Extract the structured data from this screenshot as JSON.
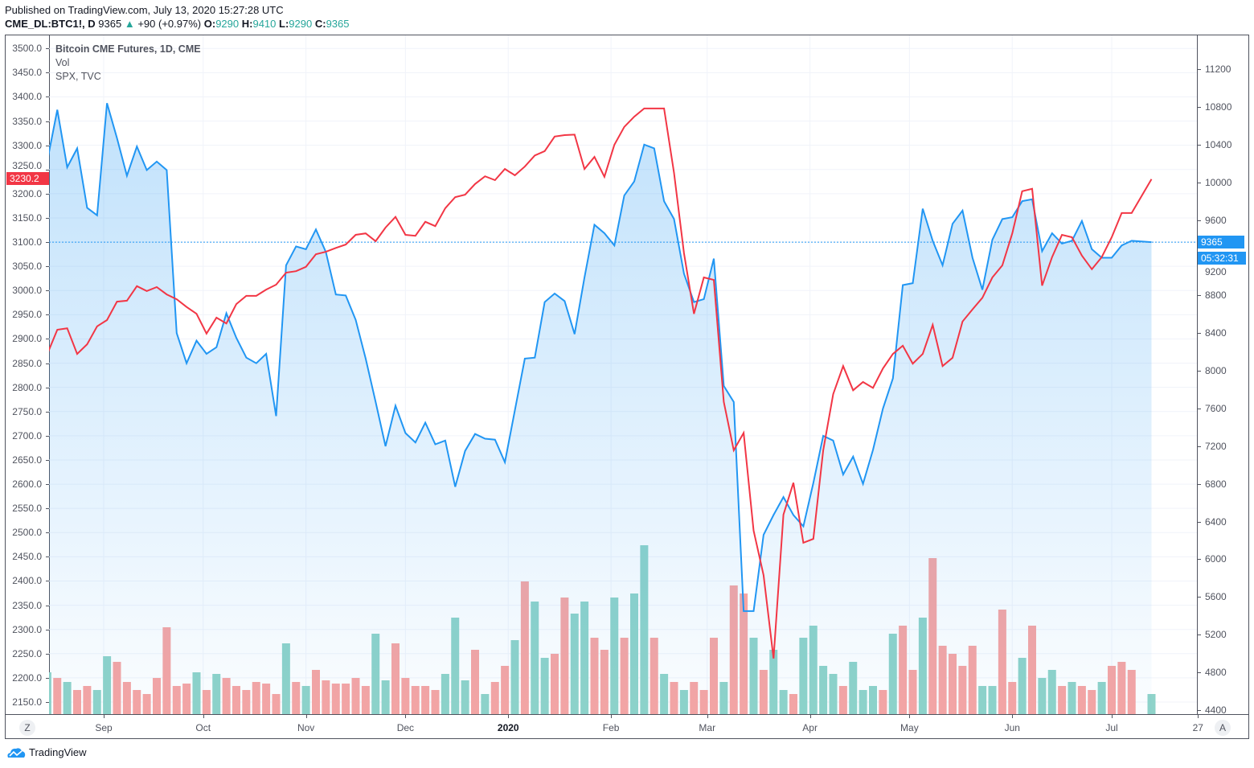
{
  "header": {
    "published": "Published on TradingView.com, July 13, 2020 15:27:28 UTC",
    "symbol": "CME_DL:BTC1!, D",
    "last": "9365",
    "change": "+90 (+0.97%)",
    "o_label": "O:",
    "o": "9290",
    "h_label": "H:",
    "h": "9410",
    "l_label": "L:",
    "l": "9290",
    "c_label": "C:",
    "c": "9365"
  },
  "legend": {
    "main": "Bitcoin CME Futures, 1D, CME",
    "vol": "Vol",
    "compare": "SPX, TVC"
  },
  "price_tags": {
    "spx_last": "3230.2",
    "btc_last": "9365",
    "countdown": "05:32:31"
  },
  "buttons": {
    "z": "Z",
    "a": "A"
  },
  "brand": "TradingView",
  "colors": {
    "btc": "#2196f3",
    "spx": "#f23645",
    "vol_up": "#8fd3c9",
    "vol_down": "#f7a5a3",
    "spx_tag": "#f23645",
    "btc_tag": "#2196f3"
  },
  "chart_data": {
    "type": "line",
    "left_axis": {
      "label": "SPX",
      "range": [
        2150,
        3500
      ],
      "ticks": [
        "3500.0",
        "3450.0",
        "3400.0",
        "3350.0",
        "3300.0",
        "3250.0",
        "3200.0",
        "3150.0",
        "3100.0",
        "3050.0",
        "3000.0",
        "2950.0",
        "2900.0",
        "2850.0",
        "2800.0",
        "2750.0",
        "2700.0",
        "2650.0",
        "2600.0",
        "2550.0",
        "2500.0",
        "2450.0",
        "2400.0",
        "2350.0",
        "2300.0",
        "2250.0",
        "2200.0",
        "2150.0"
      ]
    },
    "right_axis": {
      "label": "BTC1!",
      "range": [
        4400,
        11200
      ],
      "ticks": [
        "11200",
        "10800",
        "10400",
        "10000",
        "9600",
        "9200",
        "8800",
        "8400",
        "8000",
        "7600",
        "7200",
        "6800",
        "6400",
        "6000",
        "5600",
        "5200",
        "4800",
        "4400"
      ]
    },
    "x_ticks": [
      {
        "label": "Sep",
        "date": "2019-09-01"
      },
      {
        "label": "Oct",
        "date": "2019-10-01"
      },
      {
        "label": "Nov",
        "date": "2019-11-01"
      },
      {
        "label": "Dec",
        "date": "2019-12-01"
      },
      {
        "label": "2020",
        "date": "2020-01-01",
        "bold": true
      },
      {
        "label": "Feb",
        "date": "2020-02-01"
      },
      {
        "label": "Mar",
        "date": "2020-03-01"
      },
      {
        "label": "Apr",
        "date": "2020-04-01"
      },
      {
        "label": "May",
        "date": "2020-05-01"
      },
      {
        "label": "Jun",
        "date": "2020-06-01"
      },
      {
        "label": "Jul",
        "date": "2020-07-01"
      },
      {
        "label": "27",
        "date": "2020-07-27"
      }
    ],
    "grid": true,
    "dates": [
      "2019-08-15",
      "2019-08-18",
      "2019-08-21",
      "2019-08-24",
      "2019-08-27",
      "2019-08-30",
      "2019-09-02",
      "2019-09-05",
      "2019-09-08",
      "2019-09-11",
      "2019-09-14",
      "2019-09-17",
      "2019-09-20",
      "2019-09-23",
      "2019-09-26",
      "2019-09-29",
      "2019-10-02",
      "2019-10-05",
      "2019-10-08",
      "2019-10-11",
      "2019-10-14",
      "2019-10-17",
      "2019-10-20",
      "2019-10-23",
      "2019-10-26",
      "2019-10-29",
      "2019-11-01",
      "2019-11-04",
      "2019-11-07",
      "2019-11-10",
      "2019-11-13",
      "2019-11-16",
      "2019-11-19",
      "2019-11-22",
      "2019-11-25",
      "2019-11-28",
      "2019-12-01",
      "2019-12-04",
      "2019-12-07",
      "2019-12-10",
      "2019-12-13",
      "2019-12-16",
      "2019-12-19",
      "2019-12-22",
      "2019-12-25",
      "2019-12-28",
      "2019-12-31",
      "2020-01-03",
      "2020-01-06",
      "2020-01-09",
      "2020-01-12",
      "2020-01-15",
      "2020-01-18",
      "2020-01-21",
      "2020-01-24",
      "2020-01-27",
      "2020-01-30",
      "2020-02-02",
      "2020-02-05",
      "2020-02-08",
      "2020-02-11",
      "2020-02-14",
      "2020-02-17",
      "2020-02-20",
      "2020-02-23",
      "2020-02-26",
      "2020-02-29",
      "2020-03-03",
      "2020-03-06",
      "2020-03-09",
      "2020-03-12",
      "2020-03-15",
      "2020-03-18",
      "2020-03-21",
      "2020-03-24",
      "2020-03-27",
      "2020-03-30",
      "2020-04-02",
      "2020-04-05",
      "2020-04-08",
      "2020-04-11",
      "2020-04-14",
      "2020-04-17",
      "2020-04-20",
      "2020-04-23",
      "2020-04-26",
      "2020-04-29",
      "2020-05-02",
      "2020-05-05",
      "2020-05-08",
      "2020-05-11",
      "2020-05-14",
      "2020-05-17",
      "2020-05-20",
      "2020-05-23",
      "2020-05-26",
      "2020-05-29",
      "2020-06-01",
      "2020-06-04",
      "2020-06-07",
      "2020-06-10",
      "2020-06-13",
      "2020-06-16",
      "2020-06-19",
      "2020-06-22",
      "2020-06-25",
      "2020-06-28",
      "2020-07-01",
      "2020-07-04",
      "2020-07-07",
      "2020-07-13"
    ],
    "series": [
      {
        "name": "Bitcoin CME Futures",
        "axis": "right",
        "style": "area",
        "values": [
          10230,
          10770,
          10160,
          10360,
          9730,
          9650,
          10840,
          10470,
          10070,
          10380,
          10130,
          10220,
          10130,
          8400,
          8080,
          8320,
          8180,
          8250,
          8610,
          8350,
          8140,
          8080,
          8180,
          7520,
          9120,
          9320,
          9290,
          9500,
          9260,
          8810,
          8800,
          8540,
          8130,
          7670,
          7200,
          7630,
          7340,
          7240,
          7450,
          7220,
          7260,
          6770,
          7150,
          7330,
          7280,
          7270,
          7030,
          7580,
          8130,
          8140,
          8730,
          8820,
          8740,
          8390,
          8990,
          9550,
          9460,
          9330,
          9860,
          10010,
          10400,
          10360,
          9800,
          9610,
          9030,
          8730,
          8760,
          9190,
          7840,
          7670,
          5450,
          5450,
          6260,
          6470,
          6660,
          6470,
          6350,
          6810,
          7310,
          7260,
          6900,
          7090,
          6800,
          7160,
          7600,
          7920,
          8910,
          8930,
          9720,
          9380,
          9120,
          9560,
          9700,
          9200,
          8860,
          9390,
          9610,
          9630,
          9800,
          9820,
          9270,
          9460,
          9350,
          9380,
          9590,
          9290,
          9200,
          9200,
          9330,
          9380,
          9365
        ]
      },
      {
        "name": "SPX",
        "axis": "left",
        "style": "line",
        "values": [
          2869,
          2919,
          2922,
          2869,
          2889,
          2926,
          2939,
          2977,
          2979,
          3009,
          2999,
          3007,
          2992,
          2982,
          2966,
          2952,
          2911,
          2944,
          2932,
          2972,
          2989,
          2989,
          3002,
          3012,
          3037,
          3040,
          3049,
          3075,
          3080,
          3088,
          3095,
          3115,
          3118,
          3102,
          3130,
          3152,
          3115,
          3113,
          3142,
          3133,
          3170,
          3193,
          3198,
          3220,
          3236,
          3228,
          3251,
          3238,
          3256,
          3279,
          3288,
          3318,
          3321,
          3322,
          3251,
          3276,
          3235,
          3301,
          3338,
          3359,
          3376,
          3376,
          3376,
          3243,
          3077,
          2952,
          3027,
          3022,
          2770,
          2670,
          2706,
          2504,
          2412,
          2240,
          2537,
          2603,
          2479,
          2487,
          2670,
          2786,
          2844,
          2794,
          2811,
          2799,
          2839,
          2869,
          2886,
          2849,
          2869,
          2929,
          2844,
          2861,
          2936,
          2961,
          2985,
          3027,
          3052,
          3118,
          3205,
          3210,
          3010,
          3069,
          3115,
          3110,
          3072,
          3044,
          3069,
          3110,
          3160,
          3160,
          3230.2
        ]
      },
      {
        "name": "Vol",
        "axis": "none",
        "style": "bar",
        "values": [
          52,
          45,
          40,
          30,
          35,
          30,
          72,
          65,
          40,
          30,
          25,
          45,
          108,
          35,
          38,
          52,
          30,
          50,
          45,
          35,
          30,
          40,
          38,
          25,
          88,
          40,
          35,
          55,
          42,
          38,
          38,
          45,
          35,
          100,
          42,
          88,
          45,
          35,
          35,
          30,
          50,
          120,
          42,
          80,
          25,
          40,
          60,
          92,
          165,
          140,
          70,
          75,
          145,
          125,
          140,
          95,
          80,
          145,
          95,
          150,
          210,
          95,
          50,
          40,
          30,
          40,
          30,
          95,
          40,
          160,
          150,
          95,
          55,
          80,
          30,
          25,
          95,
          110,
          60,
          50,
          35,
          65,
          30,
          35,
          30,
          100,
          110,
          55,
          120,
          194,
          85,
          75,
          60,
          85,
          35,
          35,
          130,
          40,
          70,
          110,
          45,
          55,
          35,
          40,
          35,
          30,
          40,
          60,
          65,
          55,
          25
        ],
        "direction": [
          "up",
          "down",
          "up",
          "down",
          "down",
          "up",
          "up",
          "down",
          "down",
          "down",
          "down",
          "down",
          "down",
          "down",
          "down",
          "up",
          "down",
          "up",
          "down",
          "down",
          "down",
          "down",
          "down",
          "down",
          "up",
          "down",
          "up",
          "down",
          "down",
          "down",
          "down",
          "down",
          "down",
          "up",
          "up",
          "down",
          "down",
          "down",
          "down",
          "down",
          "up",
          "up",
          "up",
          "down",
          "up",
          "down",
          "down",
          "up",
          "down",
          "up",
          "up",
          "down",
          "down",
          "up",
          "up",
          "down",
          "down",
          "up",
          "down",
          "up",
          "up",
          "down",
          "up",
          "down",
          "up",
          "down",
          "down",
          "down",
          "up",
          "down",
          "down",
          "up",
          "down",
          "up",
          "up",
          "down",
          "up",
          "up",
          "up",
          "up",
          "down",
          "up",
          "up",
          "up",
          "down",
          "up",
          "down",
          "down",
          "up",
          "down",
          "down",
          "down",
          "down",
          "down",
          "up",
          "up",
          "down",
          "down",
          "up",
          "down",
          "up",
          "up",
          "down",
          "up",
          "down",
          "down",
          "up",
          "down",
          "down",
          "down",
          "up"
        ]
      }
    ]
  }
}
